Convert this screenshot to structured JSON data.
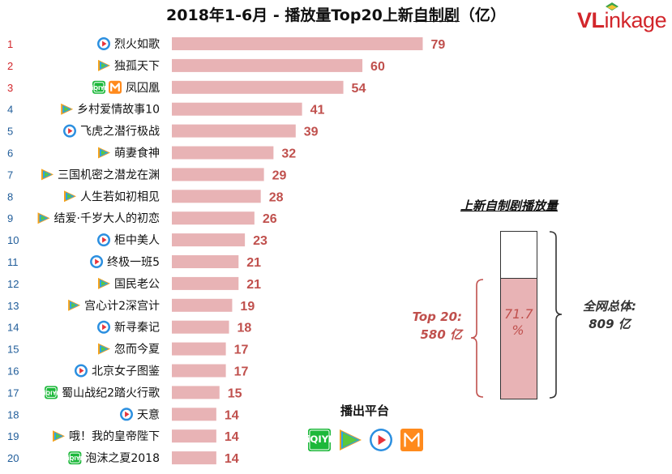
{
  "header": {
    "title_prefix": "2018年1-6月 - 播放量Top20上新",
    "title_underlined": "自制剧",
    "title_suffix": "（亿）"
  },
  "logo": {
    "brand_vl": "VL",
    "brand_rest": "inkage"
  },
  "chart_data": {
    "type": "bar",
    "orientation": "horizontal",
    "title": "2018年1-6月 - 播放量Top20上新自制剧（亿）",
    "ranks": [
      "1",
      "2",
      "3",
      "4",
      "5",
      "6",
      "7",
      "8",
      "9",
      "10",
      "11",
      "12",
      "13",
      "14",
      "15",
      "16",
      "17",
      "18",
      "19",
      "20"
    ],
    "categories": [
      "烈火如歌",
      "独孤天下",
      "凤囚凰",
      "乡村爱情故事10",
      "飞虎之潜行极战",
      "萌妻食神",
      "三国机密之潜龙在渊",
      "人生若如初相见",
      "结爱·千岁大人的初恋",
      "柜中美人",
      "终极一班5",
      "国民老公",
      "宫心计2深宫计",
      "新寻秦记",
      "忽而今夏",
      "北京女子图鉴",
      "蜀山战纪2踏火行歌",
      "天意",
      "哦！我的皇帝陛下",
      "泡沫之夏2018"
    ],
    "values": [
      79,
      60,
      54,
      41,
      39,
      32,
      29,
      28,
      26,
      23,
      21,
      21,
      19,
      18,
      17,
      17,
      15,
      14,
      14,
      14
    ],
    "platforms": [
      [
        "youku"
      ],
      [
        "tencent"
      ],
      [
        "iqiyi",
        "mango"
      ],
      [
        "tencent"
      ],
      [
        "youku"
      ],
      [
        "tencent"
      ],
      [
        "tencent"
      ],
      [
        "tencent"
      ],
      [
        "tencent"
      ],
      [
        "youku"
      ],
      [
        "youku"
      ],
      [
        "tencent"
      ],
      [
        "tencent"
      ],
      [
        "youku"
      ],
      [
        "tencent"
      ],
      [
        "youku"
      ],
      [
        "iqiyi"
      ],
      [
        "youku"
      ],
      [
        "tencent"
      ],
      [
        "iqiyi"
      ]
    ],
    "xlim": [
      0,
      85
    ],
    "colors": {
      "bar": "#e8b3b5",
      "value_label": "#c0504d",
      "rank_top3": "#d2262b",
      "rank_other": "#1f5c99"
    }
  },
  "summary": {
    "title": "上新自制剧播放量",
    "share_pct": 71.7,
    "share_label_line1": "71.7",
    "share_label_line2": "%",
    "top20_line1": "Top 20:",
    "top20_line2": "580 亿",
    "total_line1": "全网总体:",
    "total_line2": "809 亿"
  },
  "platforms_legend": {
    "title": "播出平台",
    "items": [
      "iqiyi",
      "tencent",
      "youku",
      "mango"
    ]
  }
}
